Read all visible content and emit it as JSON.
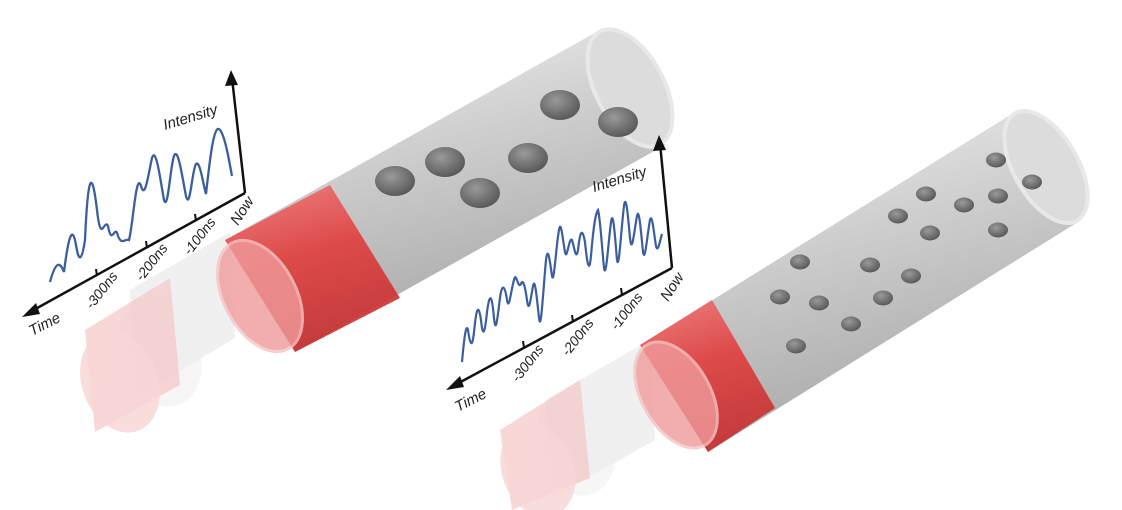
{
  "colors": {
    "tube_body": "#c9c9c9",
    "tube_highlight": "#f2f2f2",
    "tube_shadow": "#8f8f8f",
    "particle": "#6e6e6e",
    "laser_band": "#e0403f",
    "laser_ghost": "#f3b9b9",
    "signal_line": "#3b5e9e",
    "axis": "#111111"
  },
  "panels": [
    {
      "id": "large-particles",
      "intensity_label": "Intensity",
      "time_label": "Time",
      "now_label": "Now",
      "ticks": [
        "-300ns",
        "-200ns",
        "-100ns"
      ]
    },
    {
      "id": "small-particles",
      "intensity_label": "Intensity",
      "time_label": "Time",
      "now_label": "Now",
      "ticks": [
        "-300ns",
        "-200ns",
        "-100ns"
      ]
    }
  ]
}
